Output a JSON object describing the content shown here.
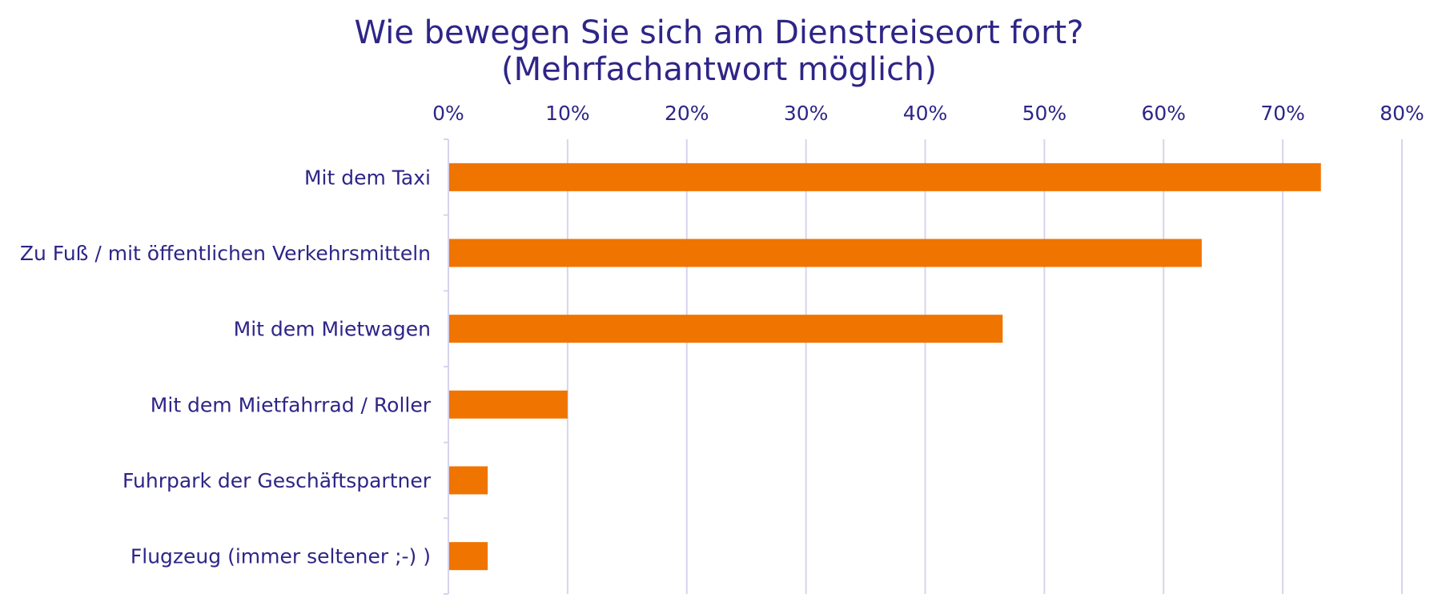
{
  "colors": {
    "bar": "#f07400",
    "text": "#2e2587",
    "grid": "#d6d4ee"
  },
  "chart_data": {
    "type": "bar",
    "orientation": "horizontal",
    "title": "Wie bewegen Sie sich am Dienstreiseort fort?",
    "subtitle": "(Mehrfachantwort möglich)",
    "categories": [
      "Mit dem Taxi",
      "Zu Fuß / mit öffentlichen Verkehrsmitteln",
      "Mit dem Mietwagen",
      "Mit dem Mietfahrrad / Roller",
      "Fuhrpark der Geschäftspartner",
      "Flugzeug (immer seltener ;-) )"
    ],
    "values": [
      73.2,
      63.2,
      46.5,
      10.0,
      3.3,
      3.3
    ],
    "unit": "%",
    "xlim": [
      0,
      80
    ],
    "x_ticks": [
      "0%",
      "10%",
      "20%",
      "30%",
      "40%",
      "50%",
      "60%",
      "70%",
      "80%"
    ],
    "x_axis_position": "top",
    "grid": true,
    "legend": false
  }
}
